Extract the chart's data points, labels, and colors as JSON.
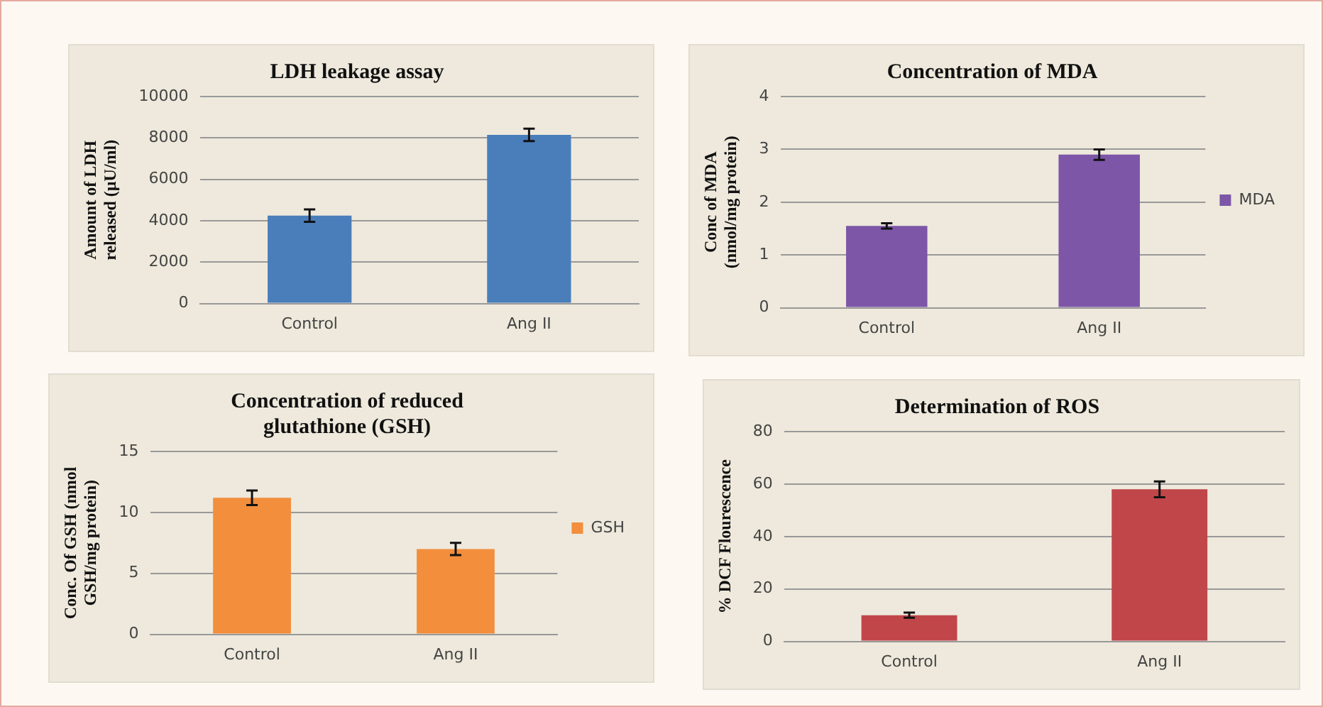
{
  "chart_data": [
    {
      "type": "bar",
      "title": "LDH leakage assay",
      "ylabel": "Amount of LDH released (µU/ml)",
      "categories": [
        "Control",
        "Ang II"
      ],
      "values": [
        4250,
        8150
      ],
      "errors": [
        300,
        300
      ],
      "color": "#4a7ebb",
      "ylim": [
        0,
        10000
      ],
      "yticks": [
        0,
        2000,
        4000,
        6000,
        8000,
        10000
      ],
      "grid": "y"
    },
    {
      "type": "bar",
      "title": "Concentration of MDA",
      "ylabel": "Conc of MDA (nmol/mg protein)",
      "categories": [
        "Control",
        "Ang II"
      ],
      "series": [
        {
          "name": "MDA",
          "color": "#7d56a8",
          "values": [
            1.55,
            2.9
          ],
          "errors": [
            0.05,
            0.1
          ]
        }
      ],
      "ylim": [
        0,
        4
      ],
      "yticks": [
        0,
        1,
        2,
        3,
        4
      ],
      "grid": "y",
      "legend": "right"
    },
    {
      "type": "bar",
      "title": "Concentration of reduced glutathione (GSH)",
      "ylabel": "Conc. Of GSH (nmol GSH/mg protein)",
      "categories": [
        "Control",
        "Ang II"
      ],
      "series": [
        {
          "name": "GSH",
          "color": "#f28e3c",
          "values": [
            11.2,
            7.0
          ],
          "errors": [
            0.6,
            0.5
          ]
        }
      ],
      "ylim": [
        0,
        15
      ],
      "yticks": [
        0,
        5,
        10,
        15
      ],
      "grid": "y",
      "legend": "right"
    },
    {
      "type": "bar",
      "title": "Determination of ROS",
      "ylabel": "% DCF Flourescence",
      "categories": [
        "Control",
        "Ang II"
      ],
      "values": [
        10,
        58
      ],
      "errors": [
        1,
        3
      ],
      "color": "#c0464a",
      "ylim": [
        0,
        80
      ],
      "yticks": [
        0,
        20,
        40,
        60,
        80
      ],
      "grid": "y"
    }
  ]
}
